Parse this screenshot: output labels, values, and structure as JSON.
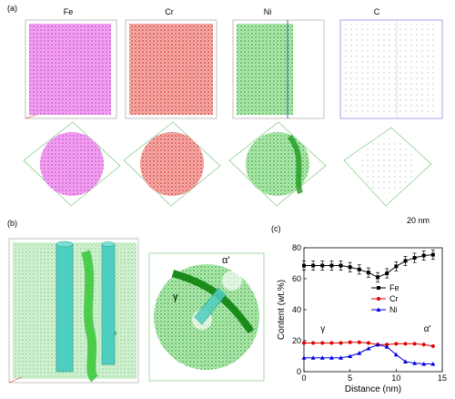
{
  "panel_labels": {
    "a": "(a)",
    "b": "(b)",
    "c": "(c)"
  },
  "element_labels": [
    "Fe",
    "Cr",
    "Ni",
    "C"
  ],
  "element_colors": {
    "Fe": "#e05be0",
    "Cr": "#e0403a",
    "Ni": "#3fc43f",
    "C": "#555555"
  },
  "scale_bar": "20 nm",
  "panel_b": {
    "gamma": "γ",
    "alpha_prime": "α'"
  },
  "chart_data": {
    "type": "line",
    "xlabel": "Distance (nm)",
    "ylabel": "Content (wt.%)",
    "xlim": [
      0,
      15
    ],
    "ylim": [
      0,
      80
    ],
    "xticks": [
      "0",
      "5",
      "10",
      "15"
    ],
    "yticks": [
      "0",
      "20",
      "40",
      "60",
      "80"
    ],
    "legend_position": "center-right",
    "x": [
      0,
      1,
      2,
      3,
      4,
      5,
      6,
      7,
      8,
      9,
      10,
      11,
      12,
      13,
      14
    ],
    "series": [
      {
        "name": "Fe",
        "color": "#000000",
        "marker": "square",
        "values": [
          68.5,
          68.5,
          68.5,
          68.5,
          68.5,
          67.5,
          66,
          64,
          61,
          63.5,
          68,
          71.5,
          73.5,
          75,
          75.5
        ],
        "errors": [
          3,
          3,
          3,
          3,
          3,
          3,
          3,
          3,
          3,
          3,
          3,
          3,
          3,
          3,
          3
        ]
      },
      {
        "name": "Cr",
        "color": "#e00000",
        "marker": "circle",
        "values": [
          18.5,
          18.5,
          18.5,
          18.5,
          18.5,
          19,
          19,
          18.5,
          17.5,
          17.5,
          18,
          18,
          18,
          17.5,
          16.5
        ]
      },
      {
        "name": "Ni",
        "color": "#0000e0",
        "marker": "triangle",
        "values": [
          9,
          9,
          9,
          9,
          9,
          10,
          12,
          15,
          17.5,
          16,
          11,
          6.5,
          5.5,
          5,
          5
        ]
      }
    ],
    "annotations": {
      "left": "γ",
      "right": "α'"
    }
  }
}
